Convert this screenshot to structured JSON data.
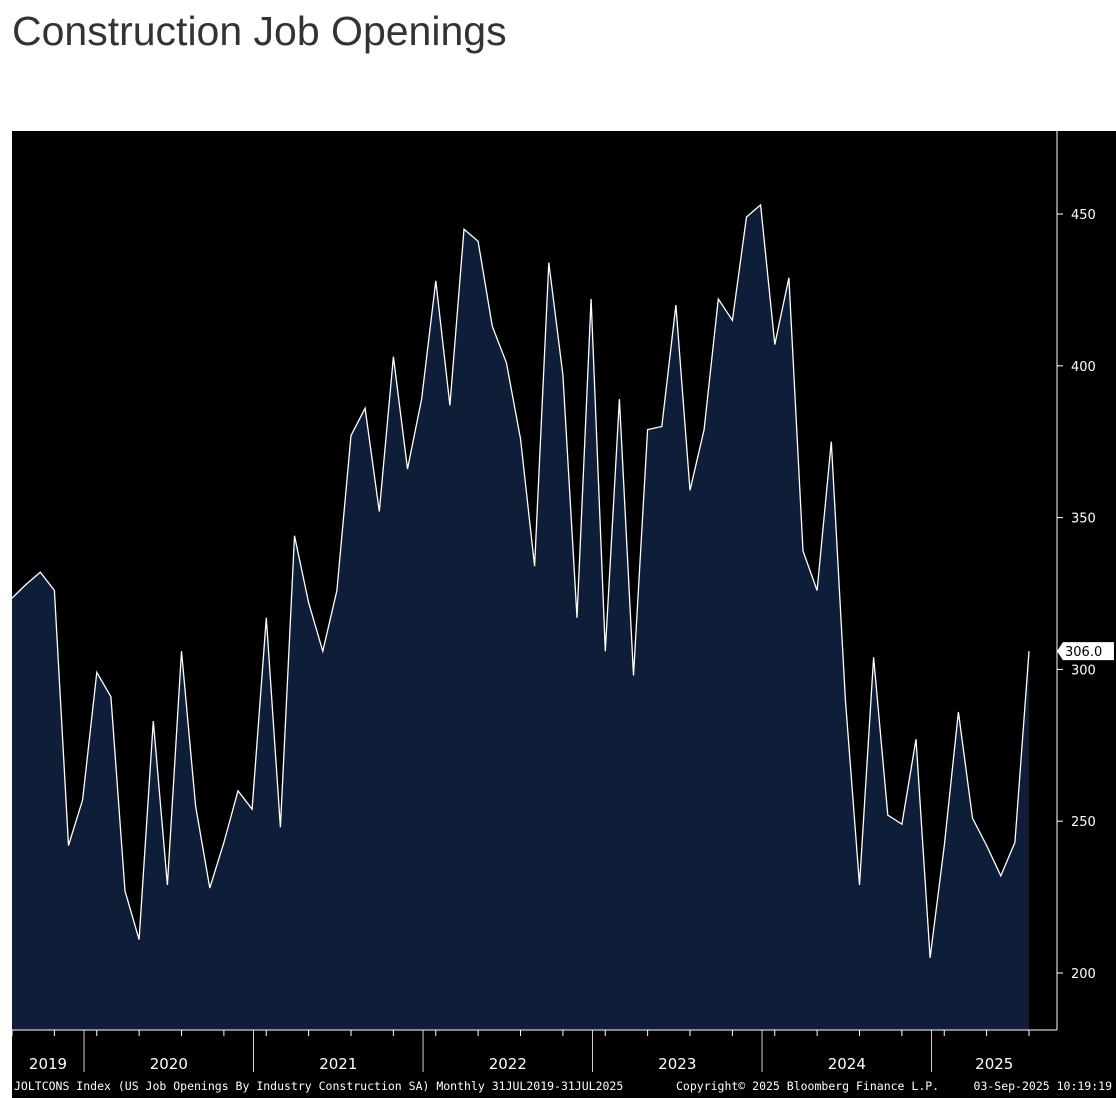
{
  "title": "Construction Job Openings",
  "chart_data": {
    "type": "area",
    "title": "Construction Job Openings",
    "series_name": "JOLTCONS Index",
    "start": "2019-07",
    "frequency": "monthly",
    "values": [
      323.5,
      328,
      332,
      326,
      242,
      257,
      299,
      291,
      227,
      211,
      283,
      229,
      306,
      255,
      228,
      243,
      260,
      254,
      317,
      248,
      344,
      322,
      306,
      326,
      377,
      386,
      352,
      403,
      366,
      389,
      428,
      387,
      445,
      441,
      413,
      401,
      376,
      334,
      434,
      397,
      317,
      422,
      306,
      389,
      298,
      379,
      380,
      420,
      359,
      379,
      422,
      415,
      449,
      453,
      407,
      429,
      339,
      326,
      375,
      290,
      229,
      304,
      252,
      249,
      277,
      205,
      242,
      286,
      251,
      242,
      232,
      243,
      306
    ],
    "ylim": [
      180,
      475
    ],
    "yticks": [
      200,
      250,
      300,
      350,
      400,
      450
    ],
    "year_labels": [
      "2019",
      "2020",
      "2021",
      "2022",
      "2023",
      "2024",
      "2025"
    ],
    "last_value_label": "306.0",
    "line_color": "#ffffff",
    "fill_color": "#0e1d38",
    "background": "#000000",
    "footer": {
      "source": "JOLTCONS Index (US Job Openings By Industry Construction SA)  Monthly 31JUL2019-31JUL2025",
      "copyright": "Copyright© 2025 Bloomberg Finance L.P.",
      "timestamp": "03-Sep-2025 10:19:19"
    }
  }
}
